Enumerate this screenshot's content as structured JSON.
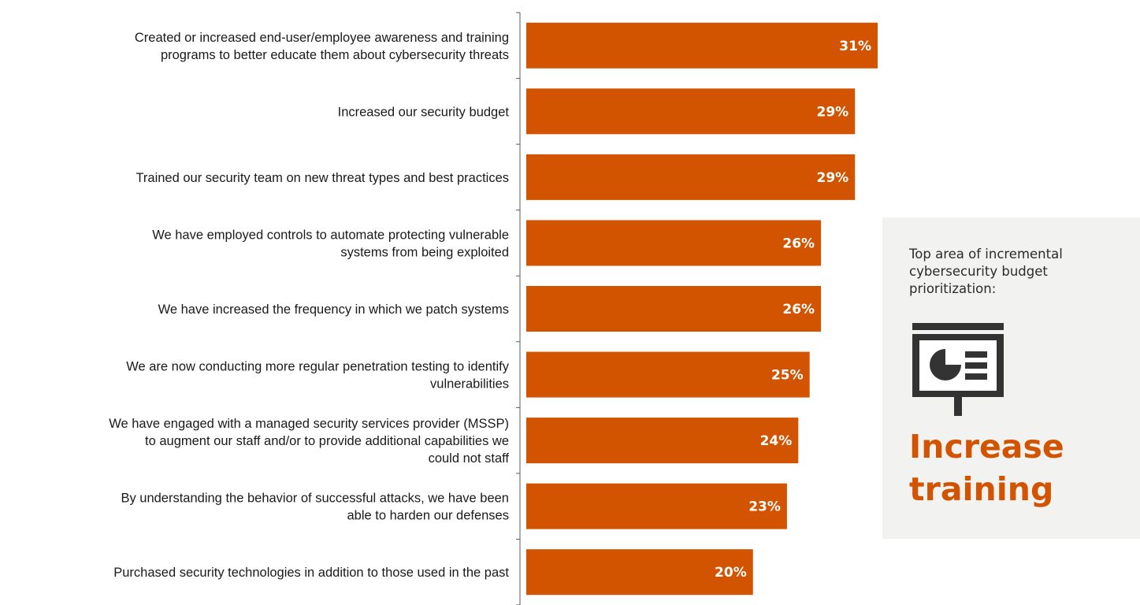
{
  "chart_data": {
    "type": "bar",
    "orientation": "horizontal",
    "categories": [
      [
        "Created or increased end-user/employee awareness and training",
        "programs to better educate them about cybersecurity threats"
      ],
      [
        "Increased our security budget"
      ],
      [
        "Trained our security team on new threat types and best practices"
      ],
      [
        "We have employed controls to automate protecting vulnerable",
        "systems from being exploited"
      ],
      [
        "We have increased the frequency in which we patch systems"
      ],
      [
        "We are now conducting more regular penetration testing to identify",
        "vulnerabilities"
      ],
      [
        "We have engaged with a managed security services provider (MSSP)",
        "to augment our staff and/or to provide additional capabilities we",
        "could not staff"
      ],
      [
        "By understanding the behavior of successful attacks, we have been",
        "able to harden our defenses"
      ],
      [
        "Purchased security technologies in addition to those used in the past"
      ]
    ],
    "values": [
      31,
      29,
      29,
      26,
      26,
      25,
      24,
      23,
      20
    ],
    "value_labels": [
      "31%",
      "29%",
      "29%",
      "26%",
      "26%",
      "25%",
      "24%",
      "23%",
      "20%"
    ],
    "bar_color": "#d35400",
    "xlim": [
      0,
      31
    ],
    "grid": false,
    "legend": "none"
  },
  "callout": {
    "caption": "Top area of incremental cybersecurity budget prioritization:",
    "icon": "presentation-board-icon",
    "headline_line1": "Increase",
    "headline_line2": "training",
    "accent_color": "#d35400",
    "icon_color": "#333333"
  }
}
